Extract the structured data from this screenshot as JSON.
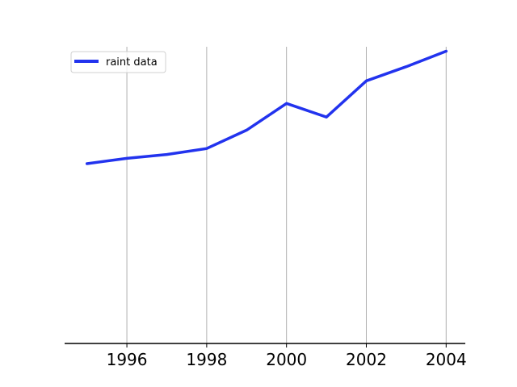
{
  "chart_data": {
    "type": "line",
    "title": "",
    "xlabel": "",
    "ylabel": "",
    "x": [
      1995,
      1996,
      1997,
      1998,
      1999,
      2000,
      2001,
      2002,
      2003,
      2004
    ],
    "series": [
      {
        "name": "raint data",
        "color": "#2233ee",
        "values": [
          6.06,
          6.24,
          6.37,
          6.57,
          7.19,
          8.09,
          7.63,
          8.85,
          9.33,
          9.85
        ]
      }
    ],
    "xlim": [
      1994.44,
      2004.48
    ],
    "ylim": [
      0,
      10
    ],
    "x_ticks": [
      "1996",
      "1998",
      "2000",
      "2002",
      "2004"
    ],
    "grid": "vertical",
    "legend_position": "upper-left"
  }
}
